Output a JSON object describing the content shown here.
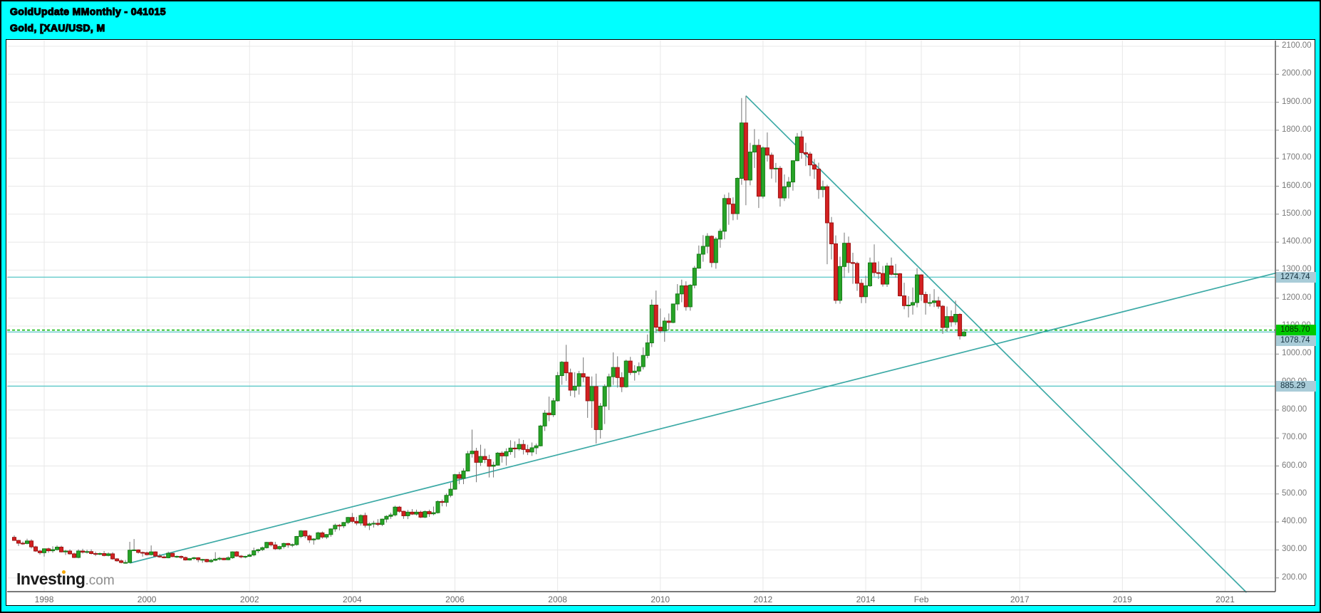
{
  "header": {
    "title_line1": "GoldUpdate MMonthly - 041015",
    "title_line2": "Gold, [XAU/USD, M"
  },
  "logo": {
    "part1": "Invest",
    "part2": "ı",
    "part3": "ng",
    "suffix": ".com",
    "dot_color": "#f7a800"
  },
  "colors": {
    "frame": "#00ffff",
    "candle_up_fill": "#27a427",
    "candle_up_stroke": "#157a15",
    "candle_down_fill": "#d32121",
    "candle_down_stroke": "#9e1212",
    "wick": "#757575",
    "grid": "#e8e8e8",
    "trendline": "#33a6a2",
    "axis_border": "#4d4d4d",
    "tick_text": "#7a7a7a"
  },
  "chart_data": {
    "type": "candlestick",
    "title": "Gold, [XAU/USD, M",
    "interval": "monthly",
    "start_month": "1997-06",
    "legend_position": "none",
    "grid": true,
    "ylim": [
      150,
      2120
    ],
    "y_tick_labels": [
      "2100.00",
      "2000.00",
      "1900.00",
      "1800.00",
      "1700.00",
      "1600.00",
      "1500.00",
      "1400.00",
      "1300.00",
      "1200.00",
      "1100.00",
      "1000.00",
      "900.00",
      "800.00",
      "700.00",
      "600.00",
      "500.00",
      "400.00",
      "300.00",
      "200.00"
    ],
    "x_ticks": [
      {
        "label": "1998",
        "m": 7
      },
      {
        "label": "2000",
        "m": 31
      },
      {
        "label": "2002",
        "m": 55
      },
      {
        "label": "2004",
        "m": 79
      },
      {
        "label": "2006",
        "m": 103
      },
      {
        "label": "2008",
        "m": 127
      },
      {
        "label": "2010",
        "m": 151
      },
      {
        "label": "2012",
        "m": 175
      },
      {
        "label": "2014",
        "m": 199
      },
      {
        "label": "Feb",
        "m": 212
      },
      {
        "label": "2017",
        "m": 235
      },
      {
        "label": "2019",
        "m": 259
      },
      {
        "label": "2021",
        "m": 283
      }
    ],
    "price_lines": [
      {
        "price": 1274.74,
        "label": "1274.74",
        "style": "solid",
        "line_color": "#66cbcb",
        "label_bg": "#a9ccd8",
        "label_color": "#16323f"
      },
      {
        "price": 1085.7,
        "label": "1085.70",
        "style": "dashed",
        "line_color": "#00b400",
        "label_bg": "#00c800",
        "label_color": "#062806",
        "label_dy": 0
      },
      {
        "price": 1078.74,
        "label": "1078.74",
        "style": "solid",
        "line_color": "#66cbcb",
        "label_bg": "#a9ccd8",
        "label_color": "#16323f",
        "label_dy": 12
      },
      {
        "price": 885.29,
        "label": "885.29",
        "style": "solid",
        "line_color": "#66cbcb",
        "label_bg": "#a9ccd8",
        "label_color": "#16323f"
      }
    ],
    "trendlines": [
      {
        "from_m": 171,
        "from_price": 1923,
        "to_m": 288,
        "to_price": 148
      },
      {
        "from_m": 27,
        "from_price": 253,
        "to_m": 295,
        "to_price": 1290
      }
    ],
    "candles": [
      [
        345,
        352,
        335,
        334
      ],
      [
        334,
        336,
        314,
        324
      ],
      [
        324,
        330,
        318,
        323
      ],
      [
        323,
        340,
        320,
        332
      ],
      [
        332,
        338,
        305,
        311
      ],
      [
        311,
        315,
        293,
        296
      ],
      [
        296,
        300,
        283,
        290
      ],
      [
        290,
        305,
        276,
        304
      ],
      [
        304,
        308,
        290,
        297
      ],
      [
        297,
        313,
        290,
        301
      ],
      [
        301,
        316,
        298,
        310
      ],
      [
        310,
        315,
        291,
        293
      ],
      [
        293,
        300,
        282,
        296
      ],
      [
        296,
        302,
        283,
        286
      ],
      [
        286,
        290,
        271,
        273
      ],
      [
        273,
        302,
        270,
        296
      ],
      [
        296,
        304,
        287,
        292
      ],
      [
        292,
        301,
        287,
        294
      ],
      [
        294,
        302,
        284,
        287
      ],
      [
        287,
        294,
        278,
        285
      ],
      [
        285,
        291,
        281,
        287
      ],
      [
        287,
        296,
        277,
        280
      ],
      [
        280,
        291,
        277,
        286
      ],
      [
        286,
        292,
        265,
        268
      ],
      [
        268,
        271,
        258,
        261
      ],
      [
        261,
        266,
        252,
        255
      ],
      [
        255,
        264,
        251,
        255
      ],
      [
        255,
        329,
        253,
        299
      ],
      [
        299,
        339,
        296,
        300
      ],
      [
        300,
        302,
        287,
        291
      ],
      [
        291,
        294,
        276,
        290
      ],
      [
        290,
        294,
        280,
        283
      ],
      [
        283,
        316,
        280,
        293
      ],
      [
        293,
        295,
        274,
        278
      ],
      [
        278,
        286,
        272,
        275
      ],
      [
        275,
        280,
        270,
        272
      ],
      [
        272,
        294,
        270,
        288
      ],
      [
        288,
        290,
        274,
        276
      ],
      [
        276,
        280,
        271,
        277
      ],
      [
        277,
        280,
        268,
        273
      ],
      [
        273,
        276,
        262,
        264
      ],
      [
        264,
        271,
        262,
        269
      ],
      [
        269,
        275,
        264,
        272
      ],
      [
        272,
        274,
        256,
        265
      ],
      [
        265,
        268,
        254,
        266
      ],
      [
        266,
        268,
        255,
        258
      ],
      [
        258,
        268,
        254,
        263
      ],
      [
        263,
        292,
        260,
        267
      ],
      [
        267,
        275,
        262,
        270
      ],
      [
        270,
        272,
        263,
        265
      ],
      [
        265,
        277,
        263,
        272
      ],
      [
        272,
        295,
        268,
        293
      ],
      [
        293,
        296,
        275,
        278
      ],
      [
        278,
        282,
        270,
        275
      ],
      [
        275,
        279,
        270,
        277
      ],
      [
        277,
        287,
        275,
        282
      ],
      [
        282,
        308,
        277,
        297
      ],
      [
        297,
        304,
        289,
        301
      ],
      [
        301,
        312,
        296,
        308
      ],
      [
        308,
        329,
        305,
        327
      ],
      [
        327,
        330,
        312,
        318
      ],
      [
        318,
        329,
        300,
        304
      ],
      [
        304,
        315,
        300,
        312
      ],
      [
        312,
        326,
        305,
        323
      ],
      [
        323,
        325,
        308,
        318
      ],
      [
        318,
        323,
        310,
        319
      ],
      [
        319,
        350,
        315,
        348
      ],
      [
        348,
        371,
        342,
        368
      ],
      [
        368,
        370,
        342,
        350
      ],
      [
        350,
        355,
        325,
        336
      ],
      [
        336,
        342,
        319,
        339
      ],
      [
        339,
        365,
        336,
        361
      ],
      [
        361,
        366,
        340,
        346
      ],
      [
        346,
        357,
        339,
        355
      ],
      [
        355,
        377,
        347,
        375
      ],
      [
        375,
        394,
        365,
        388
      ],
      [
        388,
        393,
        370,
        386
      ],
      [
        386,
        400,
        378,
        398
      ],
      [
        398,
        418,
        392,
        416
      ],
      [
        416,
        432,
        396,
        402
      ],
      [
        402,
        418,
        388,
        396
      ],
      [
        396,
        427,
        387,
        423
      ],
      [
        423,
        433,
        380,
        388
      ],
      [
        388,
        398,
        371,
        393
      ],
      [
        393,
        404,
        380,
        395
      ],
      [
        395,
        410,
        385,
        391
      ],
      [
        391,
        412,
        385,
        410
      ],
      [
        410,
        424,
        398,
        420
      ],
      [
        420,
        433,
        411,
        425
      ],
      [
        425,
        458,
        420,
        453
      ],
      [
        453,
        457,
        433,
        438
      ],
      [
        438,
        440,
        411,
        422
      ],
      [
        422,
        443,
        410,
        435
      ],
      [
        435,
        446,
        425,
        428
      ],
      [
        428,
        444,
        423,
        435
      ],
      [
        435,
        440,
        414,
        417
      ],
      [
        417,
        441,
        414,
        437
      ],
      [
        437,
        444,
        418,
        429
      ],
      [
        429,
        455,
        424,
        433
      ],
      [
        433,
        477,
        430,
        473
      ],
      [
        473,
        480,
        456,
        470
      ],
      [
        470,
        502,
        455,
        495
      ],
      [
        495,
        540,
        488,
        517
      ],
      [
        517,
        572,
        515,
        569
      ],
      [
        569,
        579,
        535,
        556
      ],
      [
        556,
        592,
        535,
        582
      ],
      [
        582,
        654,
        580,
        644
      ],
      [
        644,
        730,
        630,
        653
      ],
      [
        653,
        665,
        542,
        613
      ],
      [
        613,
        676,
        600,
        634
      ],
      [
        634,
        662,
        610,
        623
      ],
      [
        623,
        640,
        559,
        599
      ],
      [
        599,
        615,
        559,
        603
      ],
      [
        603,
        650,
        602,
        646
      ],
      [
        646,
        653,
        612,
        636
      ],
      [
        636,
        663,
        602,
        651
      ],
      [
        651,
        692,
        640,
        664
      ],
      [
        664,
        688,
        629,
        661
      ],
      [
        661,
        698,
        655,
        677
      ],
      [
        677,
        693,
        641,
        659
      ],
      [
        659,
        676,
        639,
        650
      ],
      [
        650,
        684,
        636,
        665
      ],
      [
        665,
        680,
        642,
        672
      ],
      [
        672,
        747,
        670,
        743
      ],
      [
        743,
        800,
        725,
        789
      ],
      [
        789,
        848,
        760,
        783
      ],
      [
        783,
        843,
        775,
        833
      ],
      [
        833,
        936,
        830,
        923
      ],
      [
        923,
        975,
        890,
        971
      ],
      [
        971,
        1033,
        904,
        933
      ],
      [
        933,
        948,
        850,
        871
      ],
      [
        871,
        935,
        845,
        885
      ],
      [
        885,
        940,
        855,
        930
      ],
      [
        930,
        988,
        900,
        918
      ],
      [
        918,
        920,
        772,
        833
      ],
      [
        833,
        920,
        736,
        884
      ],
      [
        884,
        930,
        680,
        730
      ],
      [
        730,
        825,
        698,
        814
      ],
      [
        814,
        892,
        750,
        884
      ],
      [
        884,
        930,
        800,
        919
      ],
      [
        919,
        1006,
        890,
        952
      ],
      [
        952,
        992,
        880,
        916
      ],
      [
        916,
        935,
        864,
        883
      ],
      [
        883,
        980,
        880,
        975
      ],
      [
        975,
        990,
        925,
        934
      ],
      [
        934,
        960,
        905,
        939
      ],
      [
        939,
        970,
        925,
        955
      ],
      [
        955,
        1024,
        945,
        995
      ],
      [
        995,
        1070,
        985,
        1040
      ],
      [
        1040,
        1195,
        1025,
        1175
      ],
      [
        1175,
        1227,
        1075,
        1096
      ],
      [
        1096,
        1163,
        1075,
        1083
      ],
      [
        1083,
        1131,
        1044,
        1118
      ],
      [
        1118,
        1145,
        1085,
        1113
      ],
      [
        1113,
        1180,
        1110,
        1179
      ],
      [
        1179,
        1250,
        1156,
        1215
      ],
      [
        1215,
        1266,
        1185,
        1244
      ],
      [
        1244,
        1260,
        1155,
        1169
      ],
      [
        1169,
        1250,
        1155,
        1246
      ],
      [
        1246,
        1315,
        1235,
        1307
      ],
      [
        1307,
        1388,
        1305,
        1357
      ],
      [
        1357,
        1425,
        1330,
        1385
      ],
      [
        1385,
        1432,
        1360,
        1421
      ],
      [
        1421,
        1424,
        1310,
        1327
      ],
      [
        1327,
        1418,
        1305,
        1411
      ],
      [
        1411,
        1448,
        1380,
        1439
      ],
      [
        1439,
        1570,
        1410,
        1556
      ],
      [
        1556,
        1577,
        1462,
        1536
      ],
      [
        1536,
        1560,
        1478,
        1502
      ],
      [
        1502,
        1632,
        1480,
        1628
      ],
      [
        1628,
        1915,
        1605,
        1826
      ],
      [
        1826,
        1923,
        1532,
        1622
      ],
      [
        1622,
        1755,
        1603,
        1722
      ],
      [
        1722,
        1804,
        1665,
        1746
      ],
      [
        1746,
        1768,
        1522,
        1564
      ],
      [
        1564,
        1742,
        1556,
        1737
      ],
      [
        1737,
        1792,
        1688,
        1711
      ],
      [
        1711,
        1720,
        1627,
        1662
      ],
      [
        1662,
        1683,
        1613,
        1664
      ],
      [
        1664,
        1672,
        1527,
        1558
      ],
      [
        1558,
        1642,
        1547,
        1598
      ],
      [
        1598,
        1633,
        1556,
        1615
      ],
      [
        1615,
        1692,
        1584,
        1691
      ],
      [
        1691,
        1790,
        1689,
        1776
      ],
      [
        1776,
        1798,
        1698,
        1720
      ],
      [
        1720,
        1755,
        1672,
        1715
      ],
      [
        1715,
        1723,
        1636,
        1676
      ],
      [
        1676,
        1697,
        1626,
        1661
      ],
      [
        1661,
        1684,
        1555,
        1588
      ],
      [
        1588,
        1620,
        1560,
        1598
      ],
      [
        1598,
        1605,
        1321,
        1469
      ],
      [
        1469,
        1490,
        1338,
        1394
      ],
      [
        1394,
        1424,
        1180,
        1192
      ],
      [
        1192,
        1348,
        1180,
        1313
      ],
      [
        1313,
        1434,
        1272,
        1396
      ],
      [
        1396,
        1420,
        1290,
        1327
      ],
      [
        1327,
        1362,
        1251,
        1324
      ],
      [
        1324,
        1330,
        1226,
        1253
      ],
      [
        1253,
        1268,
        1182,
        1205
      ],
      [
        1205,
        1280,
        1182,
        1244
      ],
      [
        1244,
        1345,
        1240,
        1326
      ],
      [
        1326,
        1392,
        1277,
        1291
      ],
      [
        1291,
        1331,
        1268,
        1288
      ],
      [
        1288,
        1315,
        1241,
        1250
      ],
      [
        1250,
        1326,
        1240,
        1315
      ],
      [
        1315,
        1345,
        1281,
        1285
      ],
      [
        1285,
        1322,
        1273,
        1287
      ],
      [
        1287,
        1290,
        1206,
        1208
      ],
      [
        1208,
        1255,
        1160,
        1173
      ],
      [
        1173,
        1207,
        1131,
        1175
      ],
      [
        1175,
        1238,
        1141,
        1184
      ],
      [
        1184,
        1307,
        1167,
        1283
      ],
      [
        1283,
        1285,
        1190,
        1213
      ],
      [
        1213,
        1223,
        1141,
        1184
      ],
      [
        1184,
        1215,
        1170,
        1184
      ],
      [
        1184,
        1232,
        1168,
        1190
      ],
      [
        1190,
        1205,
        1162,
        1171
      ],
      [
        1171,
        1175,
        1072,
        1095
      ],
      [
        1095,
        1170,
        1080,
        1134
      ],
      [
        1134,
        1156,
        1098,
        1115
      ],
      [
        1115,
        1191,
        1104,
        1142
      ],
      [
        1142,
        1146,
        1052,
        1065
      ],
      [
        1065,
        1090,
        1062,
        1078.74
      ]
    ]
  }
}
